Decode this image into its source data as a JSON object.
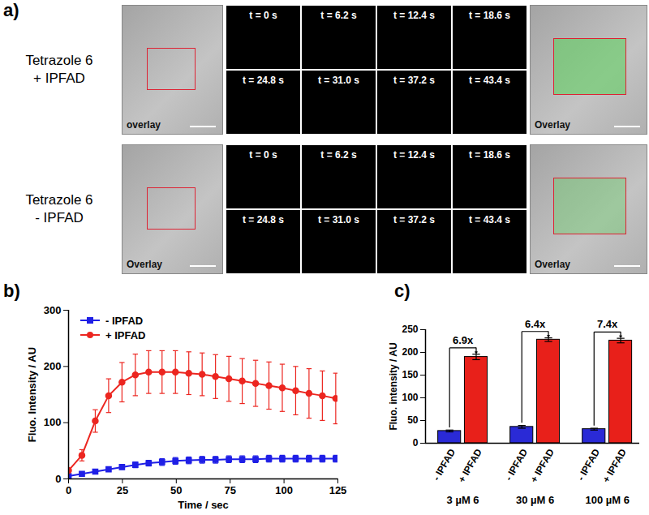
{
  "panels": {
    "a": {
      "label": "a)",
      "rows": [
        {
          "label_lines": [
            "Tetrazole 6",
            "+ IPFAD"
          ],
          "left_image_label": "overlay",
          "right_image_label": "Overlay",
          "frame_labels": [
            "t = 0 s",
            "t = 6.2 s",
            "t = 12.4 s",
            "t = 18.6 s",
            "t = 24.8 s",
            "t = 31.0 s",
            "t = 37.2 s",
            "t = 43.4 s"
          ]
        },
        {
          "label_lines": [
            "Tetrazole 6",
            "- IPFAD"
          ],
          "left_image_label": "Overlay",
          "right_image_label": "Overlay",
          "frame_labels": [
            "t = 0 s",
            "t = 6.2 s",
            "t = 12.4 s",
            "t = 18.6 s",
            "t = 24.8 s",
            "t = 31.0 s",
            "t = 37.2 s",
            "t = 43.4 s"
          ]
        }
      ]
    }
  },
  "chart_data": [
    {
      "type": "line",
      "title": "b)",
      "x": [
        0,
        6.2,
        12.4,
        18.6,
        24.8,
        31,
        37.2,
        43.4,
        49.6,
        55.8,
        62,
        68.2,
        74.4,
        80.6,
        86.8,
        93,
        99.2,
        105.4,
        111.6,
        117.8,
        124
      ],
      "series": [
        {
          "name": "- IPFAD",
          "color": "#1f1fe6",
          "marker": "square",
          "values": [
            5,
            9,
            13,
            17,
            21,
            25,
            28,
            30,
            32,
            33,
            34,
            34,
            35,
            35,
            35,
            36,
            36,
            36,
            36,
            36,
            36
          ],
          "errors": [
            1,
            2,
            2,
            3,
            4,
            5,
            5,
            6,
            6,
            6,
            6,
            6,
            6,
            6,
            6,
            6,
            6,
            6,
            6,
            6,
            6
          ]
        },
        {
          "name": "+ IPFAD",
          "color": "#ec2620",
          "marker": "circle",
          "values": [
            15,
            42,
            103,
            148,
            172,
            185,
            190,
            190,
            190,
            188,
            186,
            182,
            178,
            174,
            170,
            166,
            162,
            157,
            152,
            148,
            143
          ],
          "errors": [
            4,
            10,
            20,
            30,
            35,
            37,
            38,
            38,
            38,
            38,
            38,
            39,
            40,
            40,
            41,
            42,
            42,
            43,
            44,
            44,
            45
          ]
        }
      ],
      "xlabel": "Time / sec",
      "ylabel": "Fluo. Intensity / AU",
      "xlim": [
        0,
        125
      ],
      "xticks": [
        0,
        25,
        50,
        75,
        100,
        125
      ],
      "ylim": [
        0,
        300
      ],
      "yticks": [
        0,
        100,
        200,
        300
      ],
      "legend": "top-left"
    },
    {
      "type": "bar",
      "title": "c)",
      "categories": [
        "3 µM 6",
        "30 µM 6",
        "100 µM 6"
      ],
      "series": [
        {
          "name": "- IPFAD",
          "color": "#2a2ad6",
          "values": [
            27,
            36,
            31
          ],
          "errors": [
            2,
            3,
            2
          ]
        },
        {
          "name": "+ IPFAD",
          "color": "#e8201a",
          "values": [
            190,
            228,
            226
          ],
          "errors": [
            6,
            4,
            5
          ]
        }
      ],
      "annotations": [
        "6.9x",
        "6.4x",
        "7.4x"
      ],
      "ylabel": "Fluo. intensity / AU",
      "ylim": [
        0,
        250
      ],
      "yticks": [
        0,
        50,
        100,
        150,
        200,
        250
      ]
    }
  ]
}
